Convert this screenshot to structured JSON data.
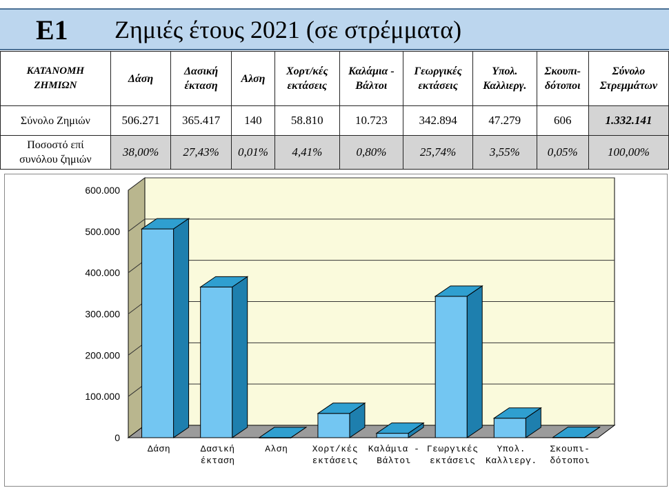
{
  "header": {
    "code": "E1",
    "title": "Ζημιές  έτους 2021 (σε στρέμματα)"
  },
  "table": {
    "headers": [
      [
        "ΚΑΤΑΝΟΜΗ",
        "ΖΗΜΙΩΝ"
      ],
      [
        "Δάση"
      ],
      [
        "Δασική",
        "έκταση"
      ],
      [
        "Αλση"
      ],
      [
        "Χορτ/κές",
        "εκτάσεις"
      ],
      [
        "Καλάμια -",
        "Βάλτοι"
      ],
      [
        "Γεωργικές",
        "εκτάσεις"
      ],
      [
        "Υπολ.",
        "Καλλιεργ."
      ],
      [
        "Σκουπι-",
        "δότοποι"
      ],
      [
        "Σύνολο",
        "Στρεμμάτων"
      ]
    ],
    "row1": {
      "label": "Σύνολο Ζημιών",
      "values": [
        "506.271",
        "365.417",
        "140",
        "58.810",
        "10.723",
        "342.894",
        "47.279",
        "606",
        "1.332.141"
      ]
    },
    "row2": {
      "label": [
        "Ποσοστό επί",
        "συνόλου ζημιών"
      ],
      "values": [
        "38,00%",
        "27,43%",
        "0,01%",
        "4,41%",
        "0,80%",
        "25,74%",
        "3,55%",
        "0,05%",
        "100,00%"
      ]
    }
  },
  "chart_data": {
    "type": "bar",
    "categories": [
      [
        "Δάση"
      ],
      [
        "Δασική",
        "έκταση"
      ],
      [
        "Αλση"
      ],
      [
        "Χορτ/κές",
        "εκτάσεις"
      ],
      [
        "Καλάμια -",
        "Βάλτοι"
      ],
      [
        "Γεωργικές",
        "εκτάσεις"
      ],
      [
        "Υπολ.",
        "Καλλιεργ."
      ],
      [
        "Σκουπι-",
        "δότοποι"
      ]
    ],
    "values": [
      506271,
      365417,
      140,
      58810,
      10723,
      342894,
      47279,
      606
    ],
    "yticks": [
      "0",
      "100.000",
      "200.000",
      "300.000",
      "400.000",
      "500.000",
      "600.000"
    ],
    "ylim": [
      0,
      600000
    ],
    "grid": true,
    "colors": {
      "front": "#73c6f2",
      "top": "#2f9fd0",
      "side": "#1e7fae",
      "plot": "#fafadc",
      "wall": "#b9b68e",
      "floor": "#9b9b9b",
      "grid": "#333333"
    }
  }
}
